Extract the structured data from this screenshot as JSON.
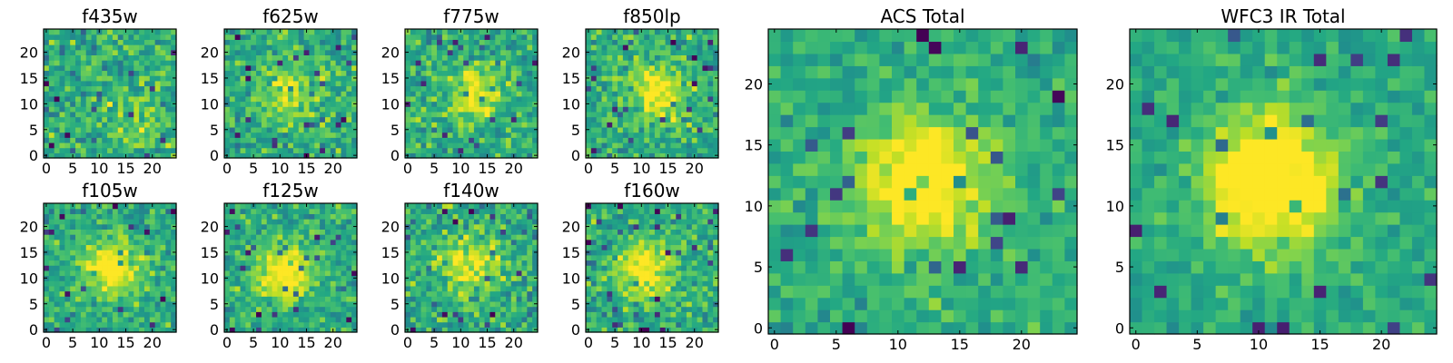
{
  "chart_data": {
    "type": "heatmap",
    "layout": "2 rows of 4 small panels, then 2 large panels on the right",
    "colormap": "viridis",
    "grid": false,
    "panels": [
      {
        "title": "f435w",
        "size": 25,
        "xticks": [
          0,
          5,
          10,
          15,
          20
        ],
        "yticks": [
          0,
          5,
          10,
          15,
          20
        ],
        "xlim": [
          -0.5,
          24.5
        ],
        "ylim": [
          -0.5,
          24.5
        ],
        "peak": {
          "x": 17,
          "y": 8
        },
        "peak_strength": 0.15,
        "noise": 0.55,
        "seed": 11
      },
      {
        "title": "f625w",
        "size": 25,
        "xticks": [
          0,
          5,
          10,
          15,
          20
        ],
        "yticks": [
          0,
          5,
          10,
          15,
          20
        ],
        "xlim": [
          -0.5,
          24.5
        ],
        "ylim": [
          -0.5,
          24.5
        ],
        "peak": {
          "x": 12,
          "y": 12
        },
        "peak_strength": 0.3,
        "noise": 0.5,
        "seed": 23
      },
      {
        "title": "f775w",
        "size": 25,
        "xticks": [
          0,
          5,
          10,
          15,
          20
        ],
        "yticks": [
          0,
          5,
          10,
          15,
          20
        ],
        "xlim": [
          -0.5,
          24.5
        ],
        "ylim": [
          -0.5,
          24.5
        ],
        "peak": {
          "x": 13,
          "y": 12
        },
        "peak_strength": 0.35,
        "noise": 0.5,
        "seed": 37
      },
      {
        "title": "f850lp",
        "size": 25,
        "xticks": [
          0,
          5,
          10,
          15,
          20
        ],
        "yticks": [
          0,
          5,
          10,
          15,
          20
        ],
        "xlim": [
          -0.5,
          24.5
        ],
        "ylim": [
          -0.5,
          24.5
        ],
        "peak": {
          "x": 13,
          "y": 12
        },
        "peak_strength": 0.4,
        "noise": 0.5,
        "seed": 41
      },
      {
        "title": "f105w",
        "size": 25,
        "xticks": [
          0,
          5,
          10,
          15,
          20
        ],
        "yticks": [
          0,
          5,
          10,
          15,
          20
        ],
        "xlim": [
          -0.5,
          24.5
        ],
        "ylim": [
          -0.5,
          24.5
        ],
        "peak": {
          "x": 12,
          "y": 12
        },
        "peak_strength": 0.45,
        "noise": 0.45,
        "seed": 53
      },
      {
        "title": "f125w",
        "size": 25,
        "xticks": [
          0,
          5,
          10,
          15,
          20
        ],
        "yticks": [
          0,
          5,
          10,
          15,
          20
        ],
        "xlim": [
          -0.5,
          24.5
        ],
        "ylim": [
          -0.5,
          24.5
        ],
        "peak": {
          "x": 11,
          "y": 11
        },
        "peak_strength": 0.5,
        "noise": 0.45,
        "seed": 67
      },
      {
        "title": "f140w",
        "size": 25,
        "xticks": [
          0,
          5,
          10,
          15,
          20
        ],
        "yticks": [
          0,
          5,
          10,
          15,
          20
        ],
        "xlim": [
          -0.5,
          24.5
        ],
        "ylim": [
          -0.5,
          24.5
        ],
        "peak": {
          "x": 12,
          "y": 13
        },
        "peak_strength": 0.35,
        "noise": 0.55,
        "seed": 79
      },
      {
        "title": "f160w",
        "size": 25,
        "xticks": [
          0,
          5,
          10,
          15,
          20
        ],
        "yticks": [
          0,
          5,
          10,
          15,
          20
        ],
        "xlim": [
          -0.5,
          24.5
        ],
        "ylim": [
          -0.5,
          24.5
        ],
        "peak": {
          "x": 11,
          "y": 12
        },
        "peak_strength": 0.45,
        "noise": 0.5,
        "seed": 83
      },
      {
        "title": "ACS Total",
        "size": 25,
        "xticks": [
          0,
          5,
          10,
          15,
          20
        ],
        "yticks": [
          0,
          5,
          10,
          15,
          20
        ],
        "xlim": [
          -0.5,
          24.5
        ],
        "ylim": [
          -0.5,
          24.5
        ],
        "peak": {
          "x": 12,
          "y": 12
        },
        "peak_strength": 0.5,
        "noise": 0.35,
        "seed": 97
      },
      {
        "title": "WFC3 IR Total",
        "size": 25,
        "xticks": [
          0,
          5,
          10,
          15,
          20
        ],
        "yticks": [
          0,
          5,
          10,
          15,
          20
        ],
        "xlim": [
          -0.5,
          24.5
        ],
        "ylim": [
          -0.5,
          24.5
        ],
        "peak": {
          "x": 11,
          "y": 12
        },
        "peak_strength": 0.6,
        "noise": 0.3,
        "seed": 101
      }
    ]
  }
}
